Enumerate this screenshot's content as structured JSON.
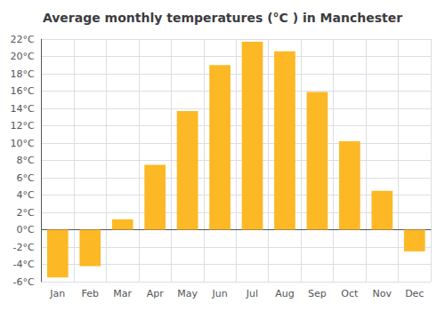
{
  "chart_data": {
    "type": "bar",
    "title": "Average monthly temperatures (°C ) in Manchester",
    "categories": [
      "Jan",
      "Feb",
      "Mar",
      "Apr",
      "May",
      "Jun",
      "Jul",
      "Aug",
      "Sep",
      "Oct",
      "Nov",
      "Dec"
    ],
    "values": [
      -5.5,
      -4.2,
      1.2,
      7.5,
      13.7,
      19.0,
      21.7,
      20.6,
      15.9,
      10.2,
      4.5,
      -2.5
    ],
    "color": "#FDB825",
    "ylim": [
      -6,
      22
    ],
    "yticks": [
      {
        "value": -6,
        "label": "-6°C"
      },
      {
        "value": -4,
        "label": "-4°C"
      },
      {
        "value": -2,
        "label": "-2°C"
      },
      {
        "value": 0,
        "label": "0°C"
      },
      {
        "value": 2,
        "label": "2°C"
      },
      {
        "value": 4,
        "label": "4°C"
      },
      {
        "value": 6,
        "label": "6°C"
      },
      {
        "value": 8,
        "label": "8°C"
      },
      {
        "value": 10,
        "label": "10°C"
      },
      {
        "value": 12,
        "label": "12°C"
      },
      {
        "value": 14,
        "label": "14°C"
      },
      {
        "value": 16,
        "label": "16°C"
      },
      {
        "value": 18,
        "label": "18°C"
      },
      {
        "value": 20,
        "label": "20°C"
      },
      {
        "value": 22,
        "label": "22°C"
      }
    ],
    "grid": true
  }
}
